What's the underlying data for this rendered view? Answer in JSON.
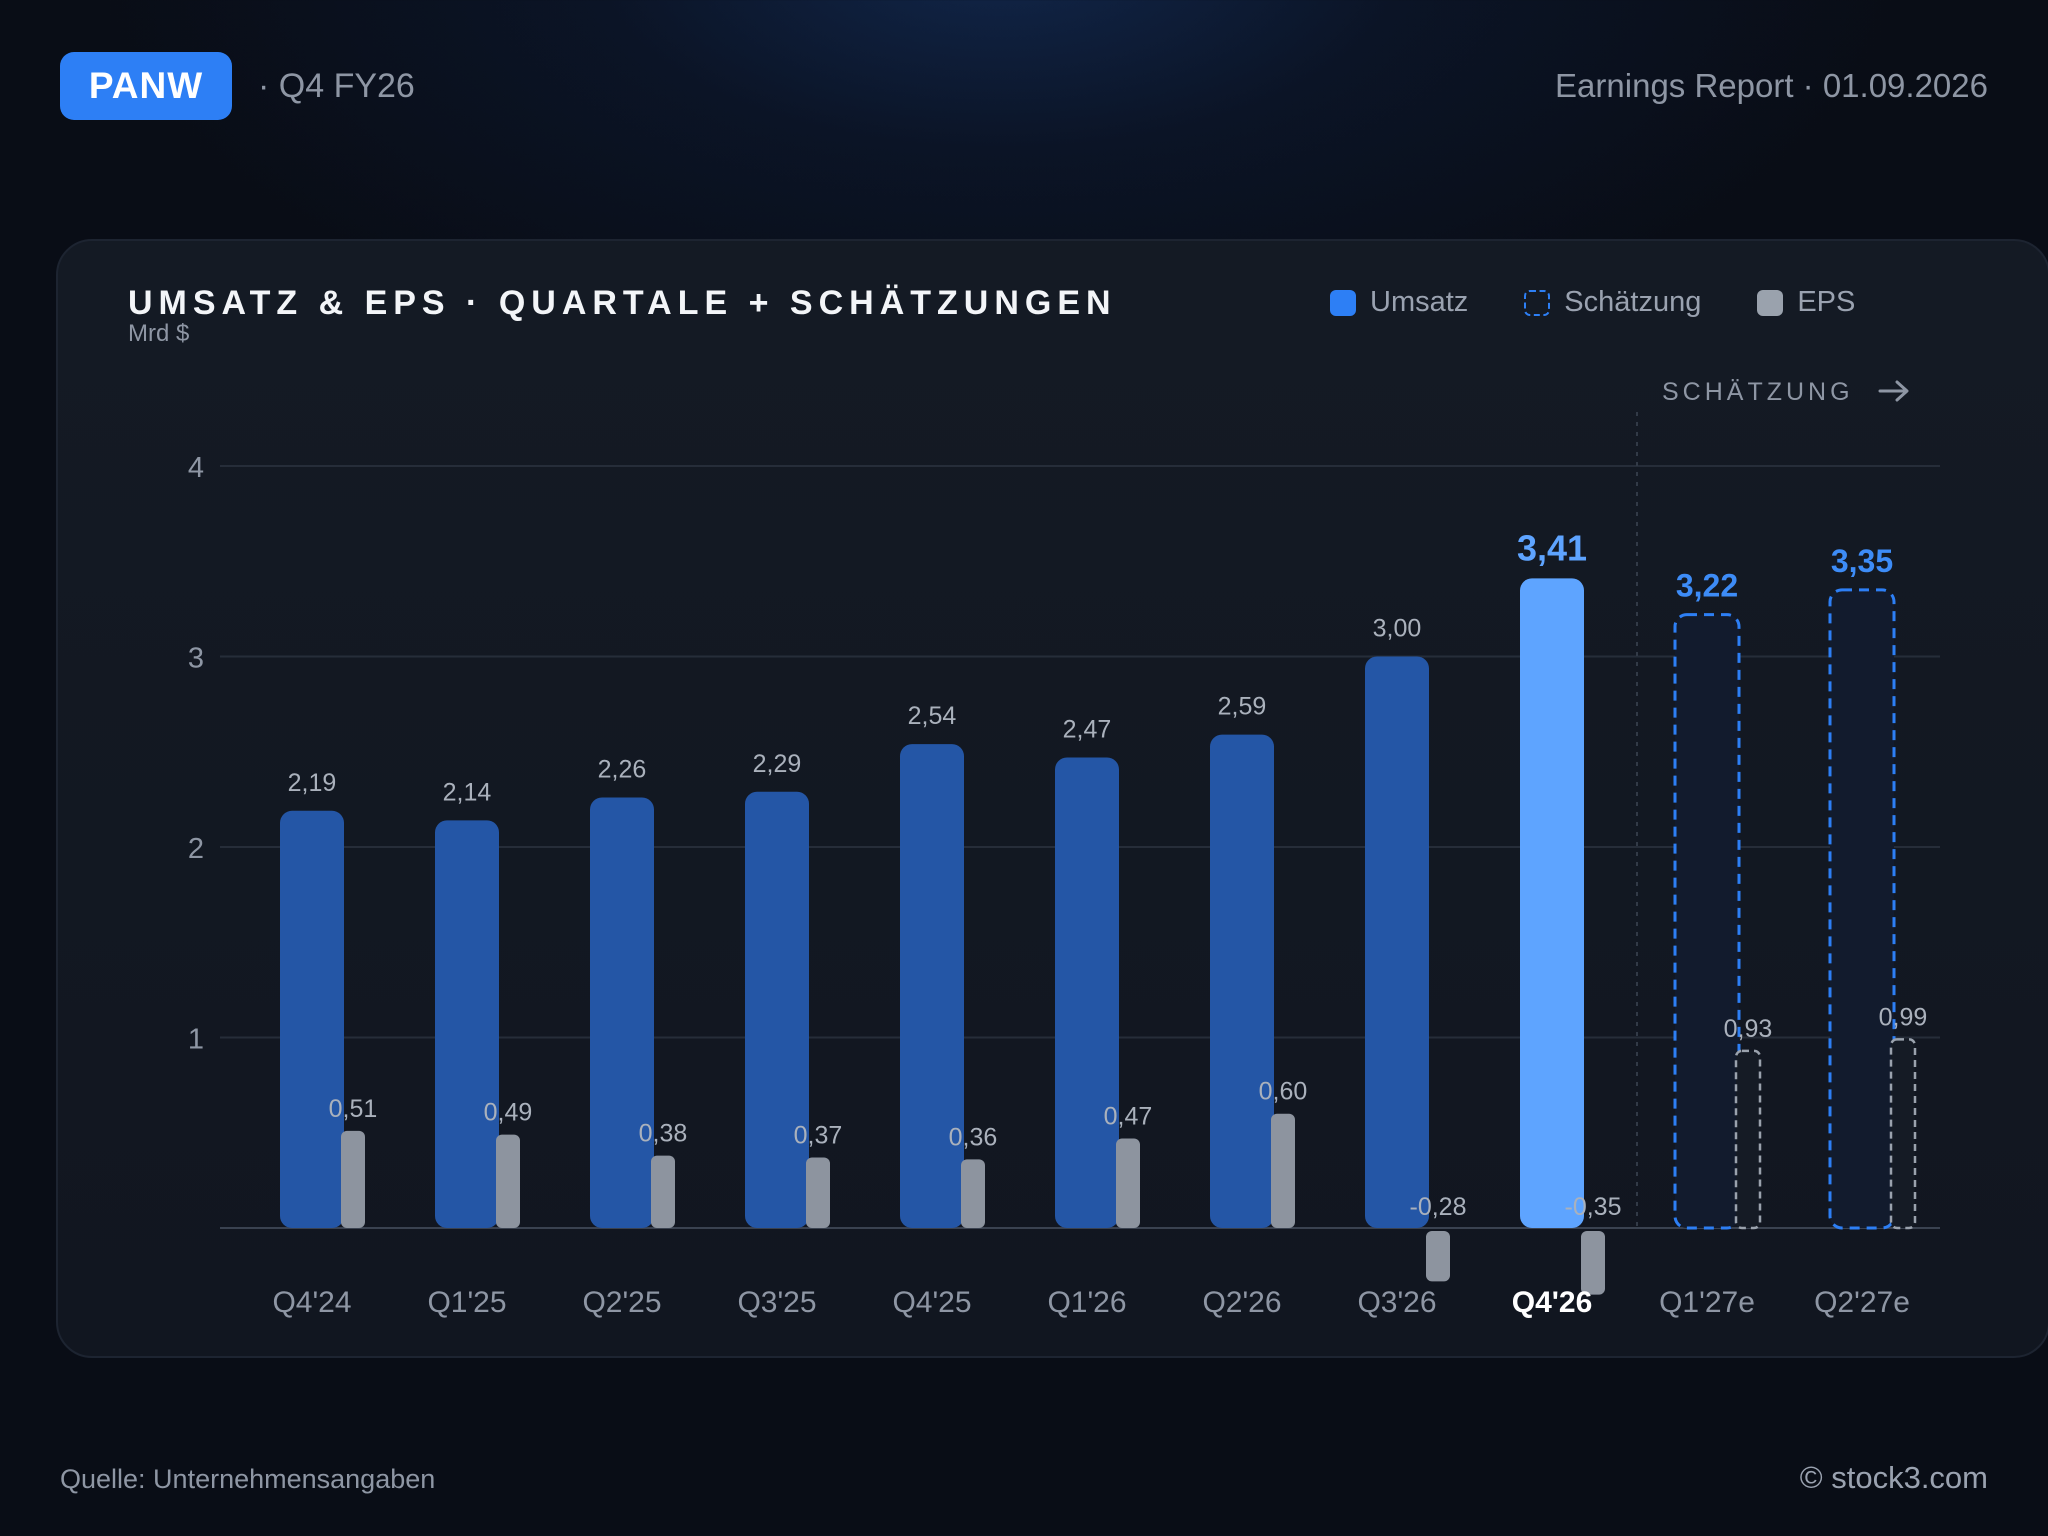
{
  "header": {
    "ticker": "PANW",
    "period": "· Q4 FY26",
    "report": "Earnings Report · 01.09.2026"
  },
  "chart_title": "UMSATZ & EPS · QUARTALE + SCHÄTZUNGEN",
  "chart_unit": "Mrd $",
  "legend": {
    "revenue": "Umsatz",
    "estimate": "Schätzung",
    "eps": "EPS"
  },
  "estimate_marker": "SCHÄTZUNG",
  "footer": {
    "source": "Quelle: Unternehmensangaben",
    "brand": "© stock3.com"
  },
  "colors": {
    "revenue": "#2456a6",
    "revenue_current": "#5ea4ff",
    "estimate_outline": "#2d7ff5",
    "estimate_label": "#3d8cf7",
    "eps": "#8d949f",
    "grid": "#262d39"
  },
  "chart_data": {
    "type": "bar",
    "categories": [
      "Q4'24",
      "Q1'25",
      "Q2'25",
      "Q3'25",
      "Q4'25",
      "Q1'26",
      "Q2'26",
      "Q3'26",
      "Q4'26",
      "Q1'27e",
      "Q2'27e"
    ],
    "series": [
      {
        "name": "Umsatz",
        "values": [
          2.19,
          2.14,
          2.26,
          2.29,
          2.54,
          2.47,
          2.59,
          3.0,
          3.41,
          3.22,
          3.35
        ],
        "labels": [
          "2,19",
          "2,14",
          "2,26",
          "2,29",
          "2,54",
          "2,47",
          "2,59",
          "3,00",
          "3,41",
          "3,22",
          "3,35"
        ]
      },
      {
        "name": "EPS",
        "values": [
          0.51,
          0.49,
          0.38,
          0.37,
          0.36,
          0.47,
          0.6,
          -0.28,
          -0.35,
          0.93,
          0.99
        ],
        "labels": [
          "0,51",
          "0,49",
          "0,38",
          "0,37",
          "0,36",
          "0,47",
          "0,60",
          "-0,28",
          "-0,35",
          "0,93",
          "0,99"
        ]
      }
    ],
    "estimate_categories": [
      "Q1'27e",
      "Q2'27e"
    ],
    "highlight_category": "Q4'26",
    "ylabel": "Mrd $",
    "yticks": [
      1,
      2,
      3,
      4
    ],
    "ylim": [
      -0.35,
      4
    ],
    "grid": true,
    "legend_position": "top-right"
  }
}
